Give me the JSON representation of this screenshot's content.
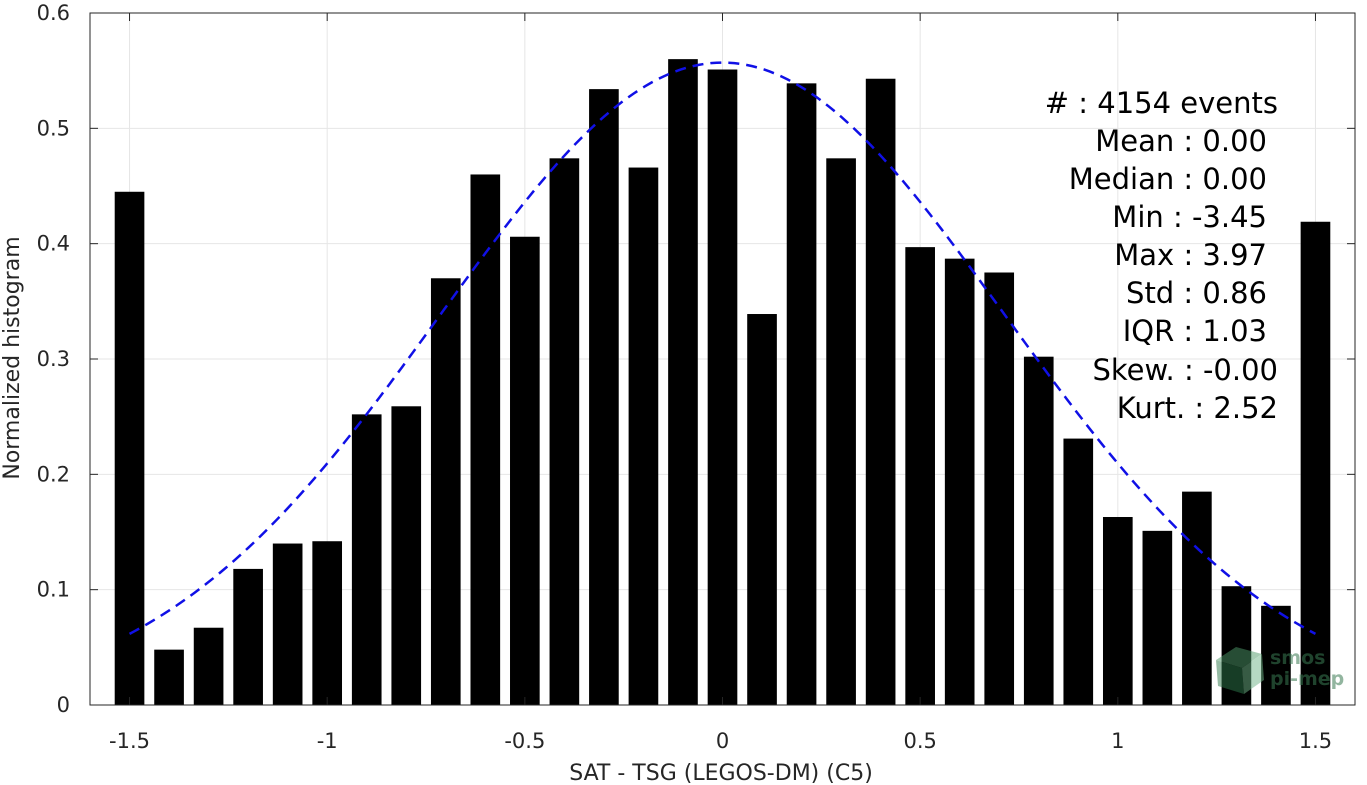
{
  "chart_data": {
    "type": "bar",
    "xlabel": "SAT - TSG (LEGOS-DM) (C5)",
    "ylabel": "Normalized histogram",
    "xlim": [
      -1.6,
      1.6
    ],
    "ylim": [
      0,
      0.6
    ],
    "xticks": [
      -1.5,
      -1,
      -0.5,
      0,
      0.5,
      1,
      1.5
    ],
    "xtick_labels": [
      "-1.5",
      "-1",
      "-0.5",
      "0",
      "0.5",
      "1",
      "1.5"
    ],
    "yticks": [
      0,
      0.1,
      0.2,
      0.3,
      0.4,
      0.5,
      0.6
    ],
    "ytick_labels": [
      "0",
      "0.1",
      "0.2",
      "0.3",
      "0.4",
      "0.5",
      "0.6"
    ],
    "grid": true,
    "bar_color": "#000000",
    "bar_width": 0.075,
    "bars": {
      "x": [
        -1.5,
        -1.4,
        -1.3,
        -1.2,
        -1.1,
        -1.0,
        -0.9,
        -0.8,
        -0.7,
        -0.6,
        -0.5,
        -0.4,
        -0.3,
        -0.2,
        -0.1,
        0.0,
        0.1,
        0.2,
        0.3,
        0.4,
        0.5,
        0.6,
        0.7,
        0.8,
        0.9,
        1.0,
        1.1,
        1.2,
        1.3,
        1.4,
        1.5
      ],
      "values": [
        0.445,
        0.048,
        0.067,
        0.118,
        0.14,
        0.142,
        0.252,
        0.259,
        0.37,
        0.46,
        0.406,
        0.474,
        0.534,
        0.466,
        0.56,
        0.551,
        0.339,
        0.539,
        0.474,
        0.543,
        0.397,
        0.387,
        0.375,
        0.302,
        0.231,
        0.163,
        0.151,
        0.185,
        0.103,
        0.086,
        0.419
      ]
    },
    "fit_curve": {
      "kind": "gaussian",
      "mean": 0.0,
      "std": 0.715,
      "peak": 0.557,
      "x_range": [
        -1.5,
        1.5
      ],
      "color": "#1010e6",
      "style": "dashed"
    },
    "annotations": [
      "#  : 4154 events",
      "Mean : 0.00",
      "Median : 0.00",
      "Min : -3.45",
      "Max : 3.97",
      "Std : 0.86",
      "IQR : 1.03",
      "Skew. : -0.00",
      "Kurt. : 2.52"
    ]
  },
  "watermark": {
    "line1": "smos",
    "line2": "pi-mep",
    "icon": "cube-logo-icon"
  }
}
